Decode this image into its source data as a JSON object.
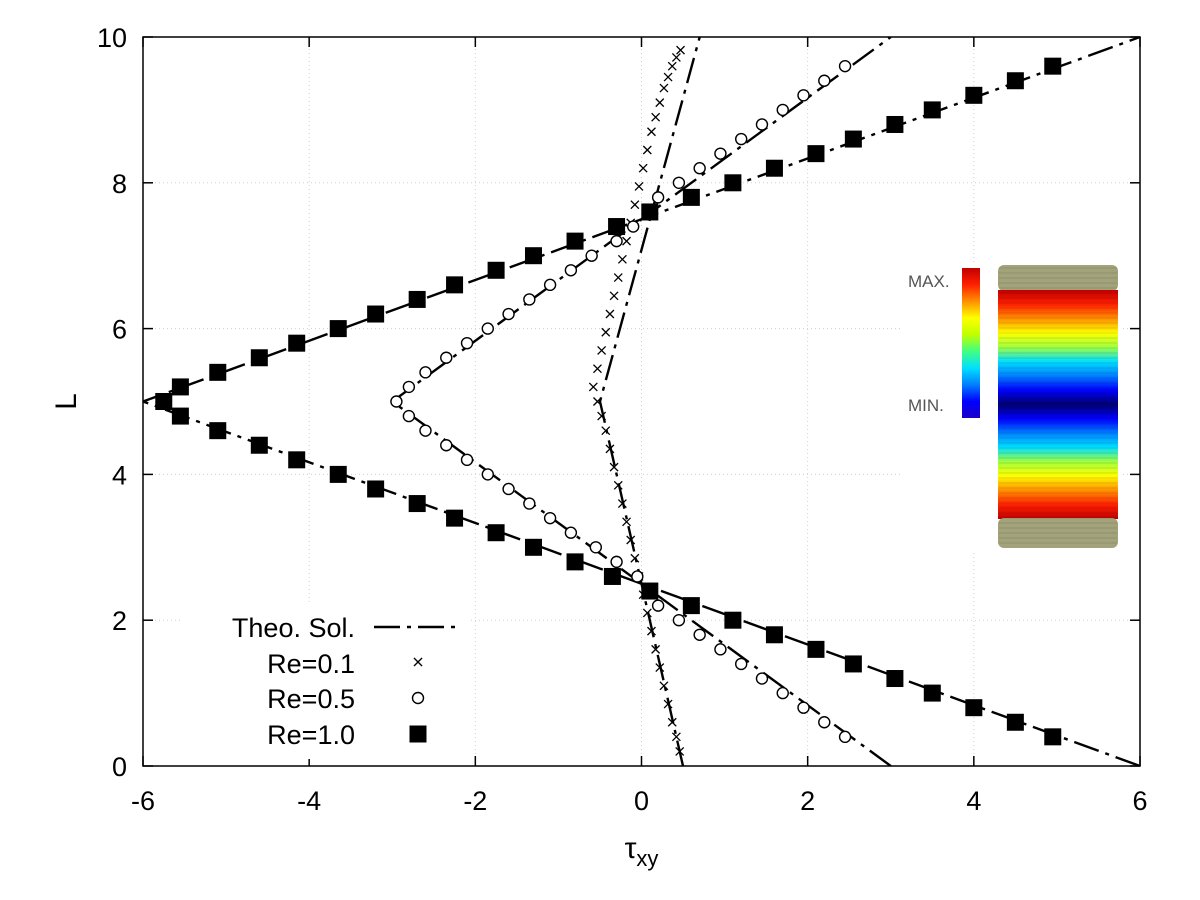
{
  "chart_data": {
    "type": "line",
    "xlabel": "τ",
    "xlabel_sub": "xy",
    "ylabel": "L",
    "xlim": [
      -6,
      6
    ],
    "ylim": [
      0,
      10
    ],
    "xticks": [
      -6,
      -4,
      -2,
      0,
      2,
      4,
      6
    ],
    "yticks": [
      0,
      2,
      4,
      6,
      8,
      10
    ],
    "grid": true,
    "legend_position": "bottom-left",
    "series": [
      {
        "name": "Theo. Sol.",
        "marker": "dash-dot-line",
        "lines": [
          {
            "x": [
              0.5,
              -0.5,
              0.7
            ],
            "y": [
              0,
              5,
              10
            ]
          },
          {
            "x": [
              3.0,
              -3.0,
              3.0
            ],
            "y": [
              0,
              5,
              10
            ]
          },
          {
            "x": [
              6.0,
              -6.0,
              6.0
            ],
            "y": [
              0,
              5,
              10
            ]
          }
        ]
      },
      {
        "name": "Re=0.1",
        "marker": "x",
        "x": [
          0.46,
          0.42,
          0.37,
          0.32,
          0.27,
          0.22,
          0.17,
          0.12,
          0.07,
          0.02,
          -0.03,
          -0.08,
          -0.13,
          -0.18,
          -0.23,
          -0.28,
          -0.33,
          -0.38,
          -0.43,
          -0.48,
          -0.53,
          -0.58,
          -0.53,
          -0.48,
          -0.43,
          -0.38,
          -0.33,
          -0.28,
          -0.23,
          -0.18,
          -0.13,
          -0.08,
          -0.03,
          0.02,
          0.07,
          0.12,
          0.17,
          0.22,
          0.27,
          0.32,
          0.37,
          0.42,
          0.47
        ],
        "y": [
          0.2,
          0.4,
          0.6,
          0.85,
          1.1,
          1.35,
          1.6,
          1.85,
          2.1,
          2.35,
          2.6,
          2.85,
          3.1,
          3.35,
          3.6,
          3.85,
          4.1,
          4.35,
          4.6,
          4.8,
          5.0,
          5.2,
          5.45,
          5.7,
          5.95,
          6.2,
          6.45,
          6.7,
          6.95,
          7.2,
          7.45,
          7.7,
          7.95,
          8.2,
          8.45,
          8.7,
          8.9,
          9.1,
          9.3,
          9.45,
          9.6,
          9.72,
          9.82
        ]
      },
      {
        "name": "Re=0.5",
        "marker": "open-circle",
        "x": [
          2.45,
          2.2,
          1.95,
          1.7,
          1.45,
          1.2,
          0.95,
          0.7,
          0.45,
          0.2,
          -0.05,
          -0.3,
          -0.55,
          -0.85,
          -1.1,
          -1.35,
          -1.6,
          -1.85,
          -2.1,
          -2.35,
          -2.6,
          -2.8,
          -2.95,
          -2.8,
          -2.6,
          -2.35,
          -2.1,
          -1.85,
          -1.6,
          -1.35,
          -1.1,
          -0.85,
          -0.6,
          -0.3,
          -0.1,
          0.2,
          0.45,
          0.7,
          0.95,
          1.2,
          1.45,
          1.7,
          1.95,
          2.2,
          2.45
        ],
        "y": [
          0.4,
          0.6,
          0.8,
          1.0,
          1.2,
          1.4,
          1.6,
          1.8,
          2.0,
          2.2,
          2.6,
          2.8,
          3.0,
          3.2,
          3.4,
          3.6,
          3.8,
          4.0,
          4.2,
          4.4,
          4.6,
          4.8,
          5.0,
          5.2,
          5.4,
          5.6,
          5.8,
          6.0,
          6.2,
          6.4,
          6.6,
          6.8,
          7.0,
          7.2,
          7.4,
          7.8,
          8.0,
          8.2,
          8.4,
          8.6,
          8.8,
          9.0,
          9.2,
          9.4,
          9.6
        ]
      },
      {
        "name": "Re=1.0",
        "marker": "filled-square",
        "x": [
          4.95,
          4.5,
          4.0,
          3.5,
          3.05,
          2.55,
          2.1,
          1.6,
          1.1,
          0.6,
          0.1,
          -0.35,
          -0.8,
          -1.3,
          -1.75,
          -2.25,
          -2.7,
          -3.2,
          -3.65,
          -4.15,
          -4.6,
          -5.1,
          -5.55,
          -5.75,
          -5.55,
          -5.1,
          -4.6,
          -4.15,
          -3.65,
          -3.2,
          -2.7,
          -2.25,
          -1.75,
          -1.3,
          -0.8,
          -0.3,
          0.1,
          0.6,
          1.1,
          1.6,
          2.1,
          2.55,
          3.05,
          3.5,
          4.0,
          4.5,
          4.95
        ],
        "y": [
          0.4,
          0.6,
          0.8,
          1.0,
          1.2,
          1.4,
          1.6,
          1.8,
          2.0,
          2.2,
          2.4,
          2.6,
          2.8,
          3.0,
          3.2,
          3.4,
          3.6,
          3.8,
          4.0,
          4.2,
          4.4,
          4.6,
          4.8,
          5.0,
          5.2,
          5.4,
          5.6,
          5.8,
          6.0,
          6.2,
          6.4,
          6.6,
          6.8,
          7.0,
          7.2,
          7.4,
          7.6,
          7.8,
          8.0,
          8.2,
          8.4,
          8.6,
          8.8,
          9.0,
          9.2,
          9.4,
          9.6
        ]
      }
    ]
  },
  "inset": {
    "colorbar_max_label": "MAX.",
    "colorbar_min_label": "MIN.",
    "colorbar_colors": [
      "#1a00c8",
      "#0000ff",
      "#0080ff",
      "#00e0ff",
      "#40ff80",
      "#c0ff00",
      "#ffff00",
      "#ff9000",
      "#ff2000",
      "#c00000"
    ],
    "plate_color": "#a3a37b"
  }
}
